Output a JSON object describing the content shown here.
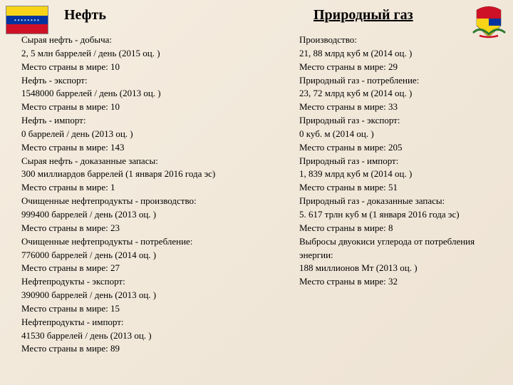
{
  "background": "#f1e8da",
  "font": {
    "family": "Georgia",
    "size_body": 13,
    "size_heading": 20
  },
  "flag": {
    "colors": [
      "#f7d417",
      "#0033a0",
      "#ce1126"
    ],
    "stars": 8
  },
  "coat_of_arms": {
    "shield_colors": [
      "#ce1126",
      "#f7d417",
      "#0033a0"
    ],
    "branch_color": "#2d7a2d"
  },
  "left": {
    "heading": "Нефть",
    "lines": [
      "Сырая нефть - добыча:",
      "2, 5 млн баррелей / день (2015 оц. )",
      "Место страны в мире: 10",
      "Нефть - экспорт:",
      "1548000 баррелей / день (2013 оц. )",
      "Место страны в мире: 10",
      "Нефть - импорт:",
      "0 баррелей / день (2013 оц. )",
      "Место страны в мире: 143",
      "Сырая нефть - доказанные запасы:",
      "300 миллиардов баррелей (1 января 2016 года эс)",
      "Место страны в мире: 1",
      "Очищенные нефтепродукты - производство:",
      "999400 баррелей / день (2013 оц. )",
      "Место страны в мире: 23",
      "Очищенные нефтепродукты - потребление:",
      "776000 баррелей / день (2014 оц. )",
      "Место страны в мире: 27",
      "Нефтепродукты - экспорт:",
      "390900 баррелей / день (2013 оц. )",
      "Место страны в мире: 15",
      "Нефтепродукты - импорт:",
      "41530 баррелей / день (2013 оц. )",
      "Место страны в мире: 89"
    ]
  },
  "right": {
    "heading": "Природный газ",
    "lines": [
      "Производство:",
      "21, 88 млрд куб м (2014 оц. )",
      "Место страны в мире: 29",
      "Природный газ - потребление:",
      "23, 72 млрд куб м (2014 оц. )",
      "Место страны в мире: 33",
      "Природный газ - экспорт:",
      "0 куб. м (2014 оц. )",
      "Место страны в мире: 205",
      "Природный газ - импорт:",
      "1, 839 млрд куб м (2014 оц. )",
      "Место страны в мире: 51",
      "Природный газ - доказанные запасы:",
      "5. 617 трлн куб м (1 января 2016 года эс)",
      "Место страны в мире: 8",
      "Выбросы двуокиси углерода от потребления энергии:",
      "188 миллионов Мт (2013 оц. )",
      "Место страны в мире: 32"
    ]
  }
}
